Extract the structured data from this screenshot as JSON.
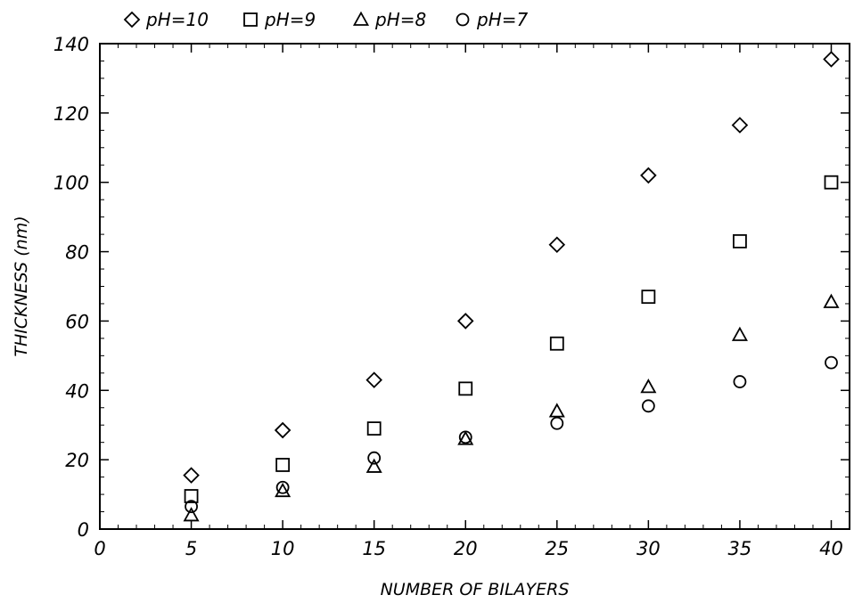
{
  "chart_data": {
    "type": "scatter",
    "title": "",
    "xlabel": "NUMBER OF BILAYERS",
    "ylabel": "THICKNESS (nm)",
    "xlim": [
      0,
      41
    ],
    "ylim": [
      0,
      140
    ],
    "xticks": [
      "0",
      "5",
      "10",
      "15",
      "20",
      "25",
      "30",
      "35",
      "40"
    ],
    "yticks": [
      "0",
      "20",
      "40",
      "60",
      "80",
      "100",
      "120",
      "140"
    ],
    "grid": false,
    "legend_position": "top, above plot",
    "series": [
      {
        "name": "pH=10",
        "marker": "diamond",
        "x": [
          5,
          10,
          15,
          20,
          25,
          30,
          35,
          40
        ],
        "y": [
          15.5,
          28.5,
          43,
          60,
          82,
          102,
          116.5,
          135.5
        ]
      },
      {
        "name": "pH=9",
        "marker": "square",
        "x": [
          5,
          10,
          15,
          20,
          25,
          30,
          35,
          40
        ],
        "y": [
          9.5,
          18.5,
          29,
          40.5,
          53.5,
          67,
          83,
          100
        ]
      },
      {
        "name": "pH=8",
        "marker": "triangle",
        "x": [
          5,
          10,
          15,
          20,
          25,
          30,
          35,
          40
        ],
        "y": [
          4,
          11,
          18,
          26,
          34,
          41,
          56,
          65.5
        ]
      },
      {
        "name": "pH=7",
        "marker": "circle",
        "x": [
          5,
          10,
          15,
          20,
          25,
          30,
          35,
          40
        ],
        "y": [
          6.5,
          12,
          20.5,
          26.5,
          30.5,
          35.5,
          42.5,
          48
        ]
      }
    ]
  }
}
